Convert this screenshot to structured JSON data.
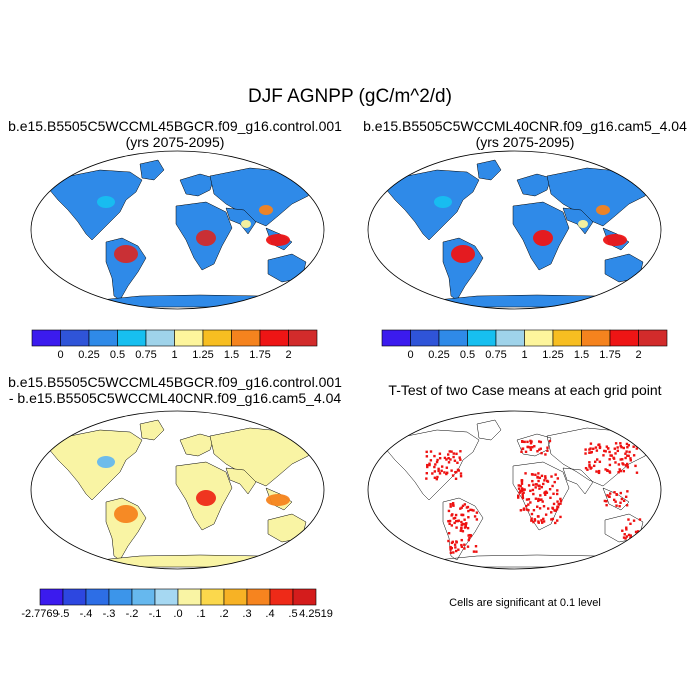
{
  "page": {
    "title": "DJF AGNPP (gC/m^2/d)"
  },
  "panels": [
    {
      "id": "case1",
      "title_lines": [
        "b.e15.B5505C5WCCML45BGCR.f09_g16.control.001",
        "(yrs 2075-2095)"
      ]
    },
    {
      "id": "case2",
      "title_lines": [
        "b.e15.B5505C5WCCML40CNR.f09_g16.cam5_4.04",
        "(yrs 2075-2095)"
      ]
    },
    {
      "id": "diff",
      "title_lines": [
        "b.e15.B5505C5WCCML45BGCR.f09_g16.control.001",
        "- b.e15.B5505C5WCCML40CNR.f09_g16.cam5_4.04"
      ]
    },
    {
      "id": "ttest",
      "title_lines": [
        "T-Test of two Case means at each grid point"
      ],
      "note": "Cells are significant at 0.1 level"
    }
  ],
  "colorbars": {
    "main": {
      "colors": [
        "#3b1bee",
        "#2f54d8",
        "#2f8ae8",
        "#17bff0",
        "#9fd3ea",
        "#fdf59c",
        "#f7be21",
        "#f5831e",
        "#ee1515",
        "#d22b2b"
      ],
      "labels": [
        "0",
        "0.25",
        "0.5",
        "0.75",
        "1",
        "1.25",
        "1.5",
        "1.75",
        "2"
      ]
    },
    "diff": {
      "colors": [
        "#3b1bee",
        "#2d47e0",
        "#2d6ee6",
        "#3c95ea",
        "#66b8ee",
        "#a6d8f2",
        "#f9f4a4",
        "#fbd84c",
        "#f7b225",
        "#f6841f",
        "#ee2a18",
        "#d41c1c"
      ],
      "labels": [
        "-2.7769",
        "-.5",
        "-.4",
        "-.3",
        "-.2",
        "-.1",
        ".0",
        ".1",
        ".2",
        ".3",
        ".4",
        ".5",
        "4.2519"
      ]
    }
  },
  "chart_data": [
    {
      "type": "heatmap",
      "title": "b.e15.B5505C5WCCML45BGCR.f09_g16.control.001 (yrs 2075-2095)",
      "projection": "Robinson",
      "levels": [
        0,
        0.25,
        0.5,
        0.75,
        1,
        1.25,
        1.5,
        1.75,
        2
      ],
      "region_values": {
        "land_background": 0.25,
        "amazon": 2.0,
        "congo": 2.0,
        "southeast_asia": 1.75,
        "east_china": 1.5,
        "eastern_usa": 0.6,
        "india": 1.0,
        "antarctica": 0.25
      }
    },
    {
      "type": "heatmap",
      "title": "b.e15.B5505C5WCCML40CNR.f09_g16.cam5_4.04 (yrs 2075-2095)",
      "projection": "Robinson",
      "levels": [
        0,
        0.25,
        0.5,
        0.75,
        1,
        1.25,
        1.5,
        1.75,
        2
      ],
      "region_values": {
        "land_background": 0.25,
        "amazon": 1.9,
        "congo": 1.9,
        "southeast_asia": 1.75,
        "east_china": 1.5,
        "eastern_usa": 0.6,
        "india": 1.0,
        "antarctica": 0.25
      }
    },
    {
      "type": "heatmap",
      "title": "b.e15.B5505C5WCCML45BGCR.f09_g16.control.001 - b.e15.B5505C5WCCML40CNR.f09_g16.cam5_4.04",
      "projection": "Robinson",
      "levels": [
        -0.5,
        -0.4,
        -0.3,
        -0.2,
        -0.1,
        0.0,
        0.1,
        0.2,
        0.3,
        0.4,
        0.5
      ],
      "range": [
        -2.7769,
        4.2519
      ],
      "region_values": {
        "land_background": 0.05,
        "amazon": 0.3,
        "congo": 0.4,
        "southeast_asia": 0.3,
        "eastern_usa": -0.2,
        "antarctica": 0.05
      }
    },
    {
      "type": "heatmap",
      "title": "T-Test of two Case means at each grid point",
      "projection": "Robinson",
      "significance_level": 0.1,
      "significant_regions": [
        "south_america",
        "central_africa",
        "eastern_usa",
        "europe",
        "east_asia",
        "southeast_asia",
        "australia_east"
      ]
    }
  ]
}
